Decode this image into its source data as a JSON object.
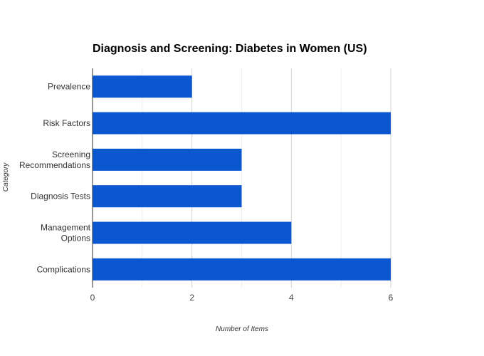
{
  "chart_data": {
    "type": "bar",
    "orientation": "horizontal",
    "title": "Diagnosis and Screening: Diabetes in Women (US)",
    "xlabel": "Number of Items",
    "ylabel": "Category",
    "categories": [
      [
        "Prevalence"
      ],
      [
        "Risk Factors"
      ],
      [
        "Screening",
        "Recommendations"
      ],
      [
        "Diagnosis Tests"
      ],
      [
        "Management",
        "Options"
      ],
      [
        "Complications"
      ]
    ],
    "values": [
      2,
      6,
      3,
      3,
      4,
      6
    ],
    "xlim": [
      0,
      6
    ],
    "xticks": [
      "0",
      "2",
      "4",
      "6"
    ],
    "minor_gridlines": [
      1,
      3,
      5
    ],
    "grid": true,
    "bar_color": "#0b57d0"
  }
}
